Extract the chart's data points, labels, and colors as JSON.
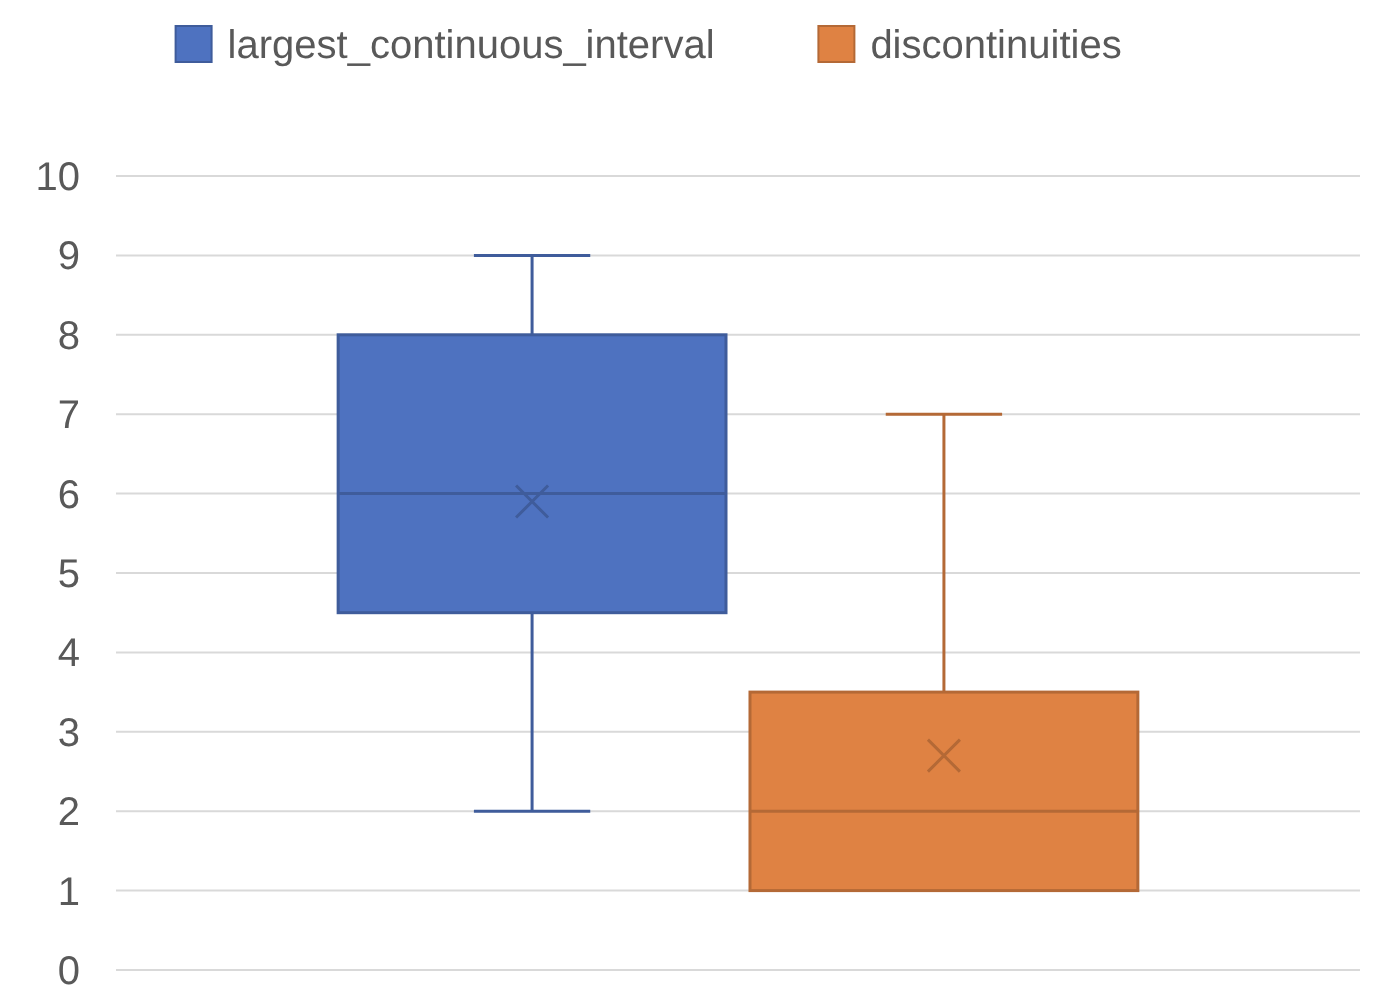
{
  "chart_data": {
    "type": "box",
    "categories": [
      null
    ],
    "series": [
      {
        "name": "largest_continuous_interval",
        "color": "#4e72c0",
        "boxes": [
          {
            "low": 2,
            "q1": 4.5,
            "median": 6,
            "q3": 8,
            "high": 9,
            "mean": 5.9
          }
        ]
      },
      {
        "name": "discontinuities",
        "color": "#df8243",
        "boxes": [
          {
            "low": 1,
            "q1": 1,
            "median": 2,
            "q3": 3.5,
            "high": 7,
            "mean": 2.7
          }
        ]
      }
    ],
    "ylim": [
      0,
      10
    ],
    "yticks": [
      0,
      1,
      2,
      3,
      4,
      5,
      6,
      7,
      8,
      9,
      10
    ],
    "grid": "y",
    "legend": "top"
  }
}
